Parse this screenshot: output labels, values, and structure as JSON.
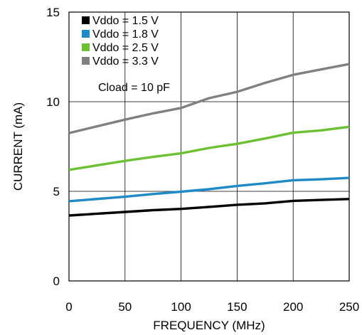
{
  "chart_data": {
    "type": "line",
    "title": "",
    "xlabel": "FREQUENCY (MHz)",
    "ylabel": "CURRENT (mA)",
    "xlim": [
      0,
      250
    ],
    "ylim": [
      0,
      15
    ],
    "x_ticks": [
      "0",
      "50",
      "100",
      "150",
      "200",
      "250"
    ],
    "y_ticks": [
      "0",
      "5",
      "10",
      "15"
    ],
    "grid": true,
    "legend_position": "top-left",
    "annotation": "Cload = 10 pF",
    "series": [
      {
        "name": "Vddo = 1.5 V",
        "color": "#000000",
        "x": [
          0,
          50,
          75,
          100,
          125,
          150,
          175,
          200,
          225,
          250
        ],
        "y": [
          3.65,
          3.85,
          3.95,
          4.02,
          4.13,
          4.25,
          4.33,
          4.47,
          4.52,
          4.57
        ]
      },
      {
        "name": "Vddo = 1.8 V",
        "color": "#1f8ac8",
        "x": [
          0,
          50,
          75,
          100,
          125,
          150,
          175,
          200,
          225,
          250
        ],
        "y": [
          4.45,
          4.7,
          4.85,
          4.98,
          5.12,
          5.3,
          5.45,
          5.62,
          5.67,
          5.75
        ]
      },
      {
        "name": "Vddo = 2.5 V",
        "color": "#6cc133",
        "x": [
          0,
          50,
          75,
          100,
          125,
          150,
          175,
          200,
          225,
          250
        ],
        "y": [
          6.2,
          6.7,
          6.92,
          7.12,
          7.42,
          7.65,
          7.95,
          8.27,
          8.4,
          8.6
        ]
      },
      {
        "name": "Vddo = 3.3 V",
        "color": "#808080",
        "x": [
          0,
          50,
          75,
          100,
          125,
          150,
          175,
          200,
          225,
          250
        ],
        "y": [
          8.25,
          9.0,
          9.35,
          9.65,
          10.2,
          10.55,
          11.05,
          11.5,
          11.8,
          12.1
        ]
      }
    ]
  }
}
